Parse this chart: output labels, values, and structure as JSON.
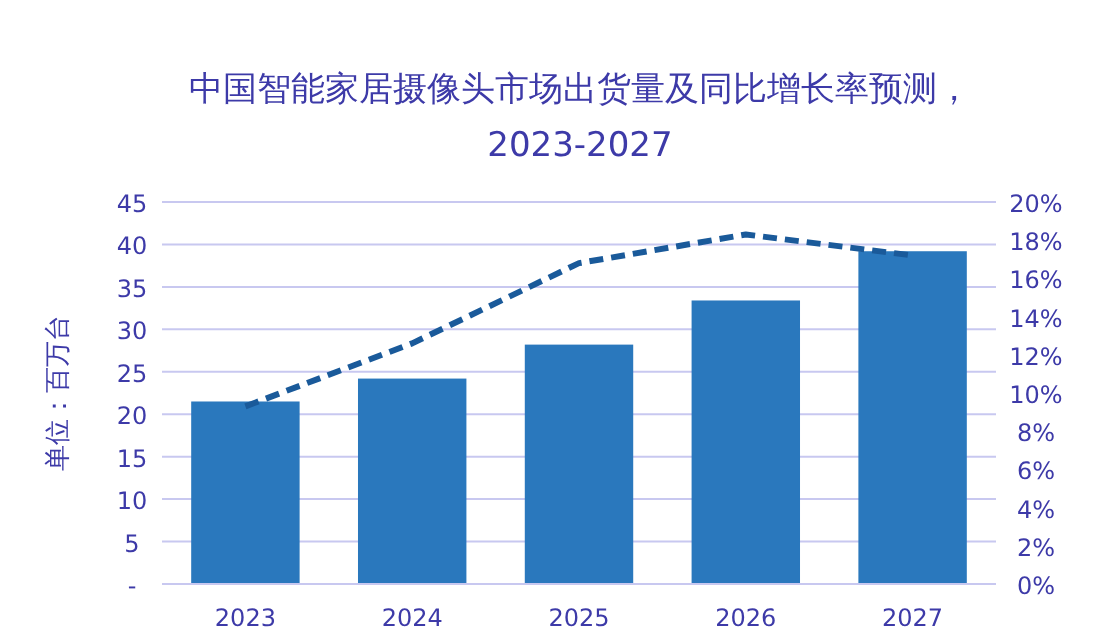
{
  "chart_data": {
    "type": "bar",
    "title": "中国智能家居摄像头市场出货量及同比增长率预测，2023-2027",
    "ylabel": "单位：百万台",
    "categories": [
      "2023",
      "2024",
      "2025",
      "2026",
      "2027"
    ],
    "series": [
      {
        "color": "#2a78bd",
        "values": [
          21.5,
          24.2,
          28.2,
          33.4,
          39.2
        ]
      },
      {
        "type": "line",
        "axis": "y2",
        "color": "#1a5a9a",
        "line_style": "dashed",
        "marker": "none",
        "values": [
          9.3,
          12.6,
          16.8,
          18.3,
          17.2
        ]
      }
    ],
    "ylim": [
      0,
      45
    ],
    "yticks": [
      {
        "value": 0,
        "label": "-"
      },
      5,
      10,
      15,
      20,
      25,
      30,
      35,
      40,
      45
    ],
    "y2lim": [
      0,
      20
    ],
    "y2ticks": [
      {
        "value": 0,
        "label": "0%"
      },
      {
        "value": 2,
        "label": "2%"
      },
      {
        "value": 4,
        "label": "4%"
      },
      {
        "value": 6,
        "label": "6%"
      },
      {
        "value": 8,
        "label": "8%"
      },
      {
        "value": 10,
        "label": "10%"
      },
      {
        "value": 12,
        "label": "12%"
      },
      {
        "value": 14,
        "label": "14%"
      },
      {
        "value": 16,
        "label": "16%"
      },
      {
        "value": 18,
        "label": "18%"
      },
      {
        "value": 20,
        "label": "20%"
      }
    ],
    "grid": "y"
  }
}
